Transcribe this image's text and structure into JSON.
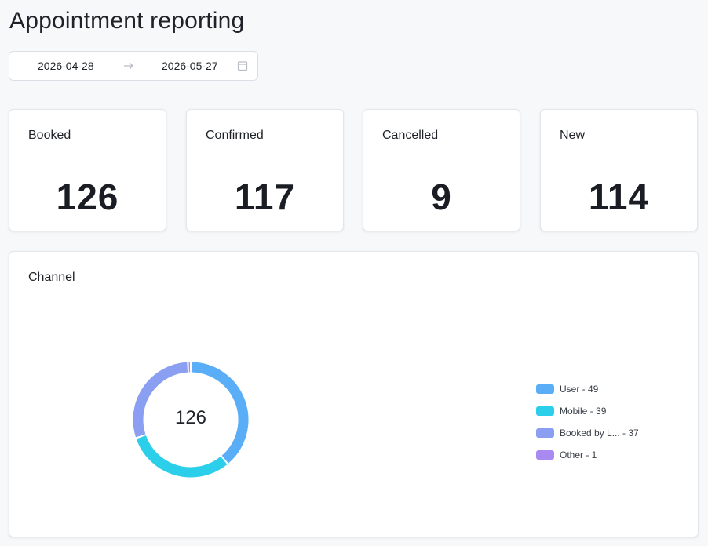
{
  "page": {
    "title": "Appointment reporting"
  },
  "date_range": {
    "start": "2026-04-28",
    "end": "2026-05-27"
  },
  "stats": [
    {
      "label": "Booked",
      "value": "126"
    },
    {
      "label": "Confirmed",
      "value": "117"
    },
    {
      "label": "Cancelled",
      "value": "9"
    },
    {
      "label": "New",
      "value": "114"
    }
  ],
  "channel": {
    "title": "Channel",
    "total": "126",
    "legend": [
      {
        "text": "User - 49",
        "color": "#5aaef7"
      },
      {
        "text": "Mobile - 39",
        "color": "#2ccfea"
      },
      {
        "text": "Booked by L... - 37",
        "color": "#8a9ef2"
      },
      {
        "text": "Other - 1",
        "color": "#a98af0"
      }
    ]
  },
  "chart_data": {
    "type": "pie",
    "title": "Channel",
    "categories": [
      "User",
      "Mobile",
      "Booked by L...",
      "Other"
    ],
    "values": [
      49,
      39,
      37,
      1
    ],
    "colors": [
      "#5aaef7",
      "#2ccfea",
      "#8a9ef2",
      "#a98af0"
    ],
    "total": 126,
    "legend": "right"
  }
}
